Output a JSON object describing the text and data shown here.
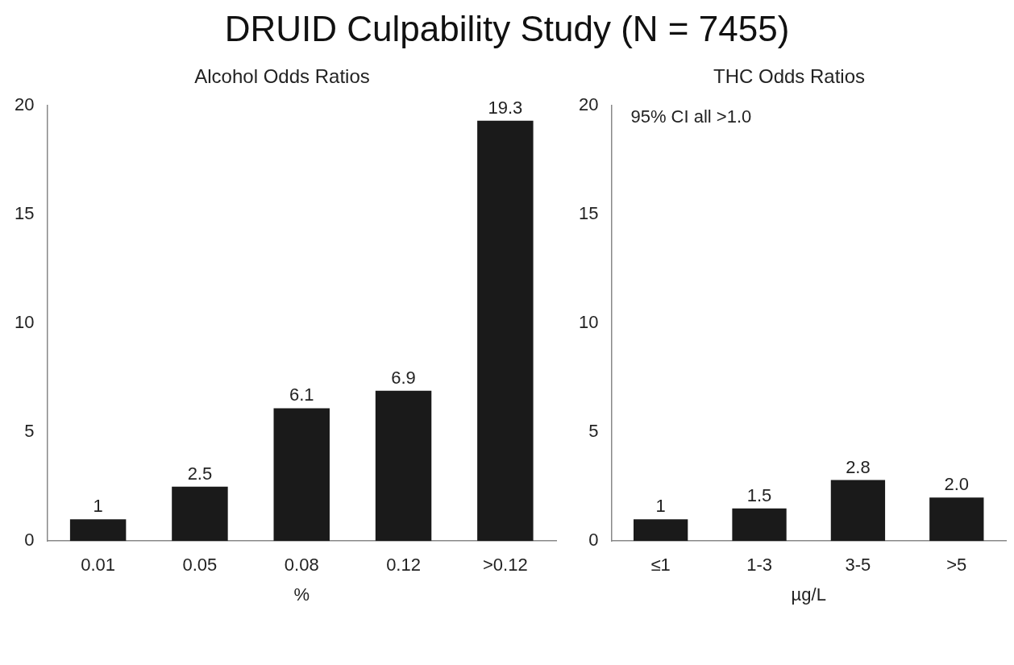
{
  "chart_data": [
    {
      "type": "bar",
      "title": "DRUID Culpability Study (N = 7455)",
      "subtitle": "Alcohol Odds Ratios",
      "xlabel": "%",
      "categories": [
        "0.01",
        "0.05",
        "0.08",
        "0.12",
        ">0.12"
      ],
      "values": [
        1,
        2.5,
        6.1,
        6.9,
        19.3
      ],
      "value_labels": [
        "1",
        "2.5",
        "6.1",
        "6.9",
        "19.3"
      ],
      "color": "#1a1a1a",
      "ylim": [
        0,
        20
      ],
      "yticks": [
        0,
        5,
        10,
        15,
        20
      ],
      "grid": false,
      "legend": false
    },
    {
      "type": "bar",
      "subtitle": "THC Odds Ratios",
      "annotations": [
        "95% CI all >1.0"
      ],
      "xlabel": "µg/L",
      "categories": [
        "≤1",
        "1-3",
        "3-5",
        ">5"
      ],
      "values": [
        1,
        1.5,
        2.8,
        2.0
      ],
      "value_labels": [
        "1",
        "1.5",
        "2.8",
        "2.0"
      ],
      "color": "#1a1a1a",
      "ylim": [
        0,
        20
      ],
      "yticks": [
        0,
        5,
        10,
        15,
        20
      ],
      "grid": false,
      "legend": false
    }
  ]
}
